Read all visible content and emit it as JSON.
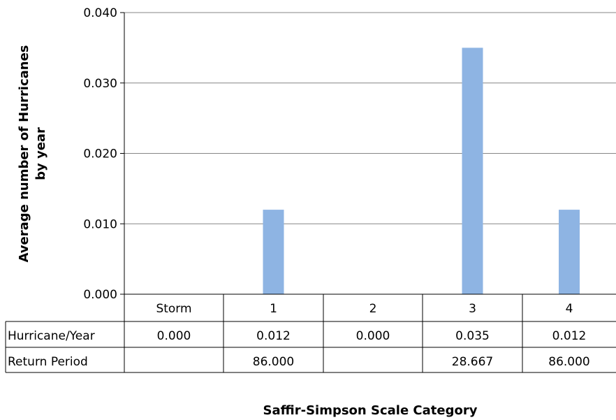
{
  "chart_data": {
    "type": "bar",
    "categories": [
      "Storm",
      "1",
      "2",
      "3",
      "4"
    ],
    "series": [
      {
        "name": "Hurricane/Year",
        "values": [
          0.0,
          0.012,
          0.0,
          0.035,
          0.012
        ]
      }
    ],
    "data_table": {
      "rows": [
        {
          "label": "Hurricane/Year",
          "cells": [
            "0.000",
            "0.012",
            "0.000",
            "0.035",
            "0.012"
          ]
        },
        {
          "label": "Return Period",
          "cells": [
            "",
            "86.000",
            "",
            "28.667",
            "86.000"
          ]
        }
      ]
    },
    "y_ticks": [
      "0.000",
      "0.010",
      "0.020",
      "0.030",
      "0.040"
    ],
    "ylim": [
      0,
      0.04
    ],
    "ylabel_lines": [
      "Average number of Hurricanes",
      "by year"
    ],
    "xlabel": "Saffir-Simpson Scale Category",
    "grid": true,
    "bar_color": "#8eb4e3",
    "gridline_color": "#868686"
  }
}
